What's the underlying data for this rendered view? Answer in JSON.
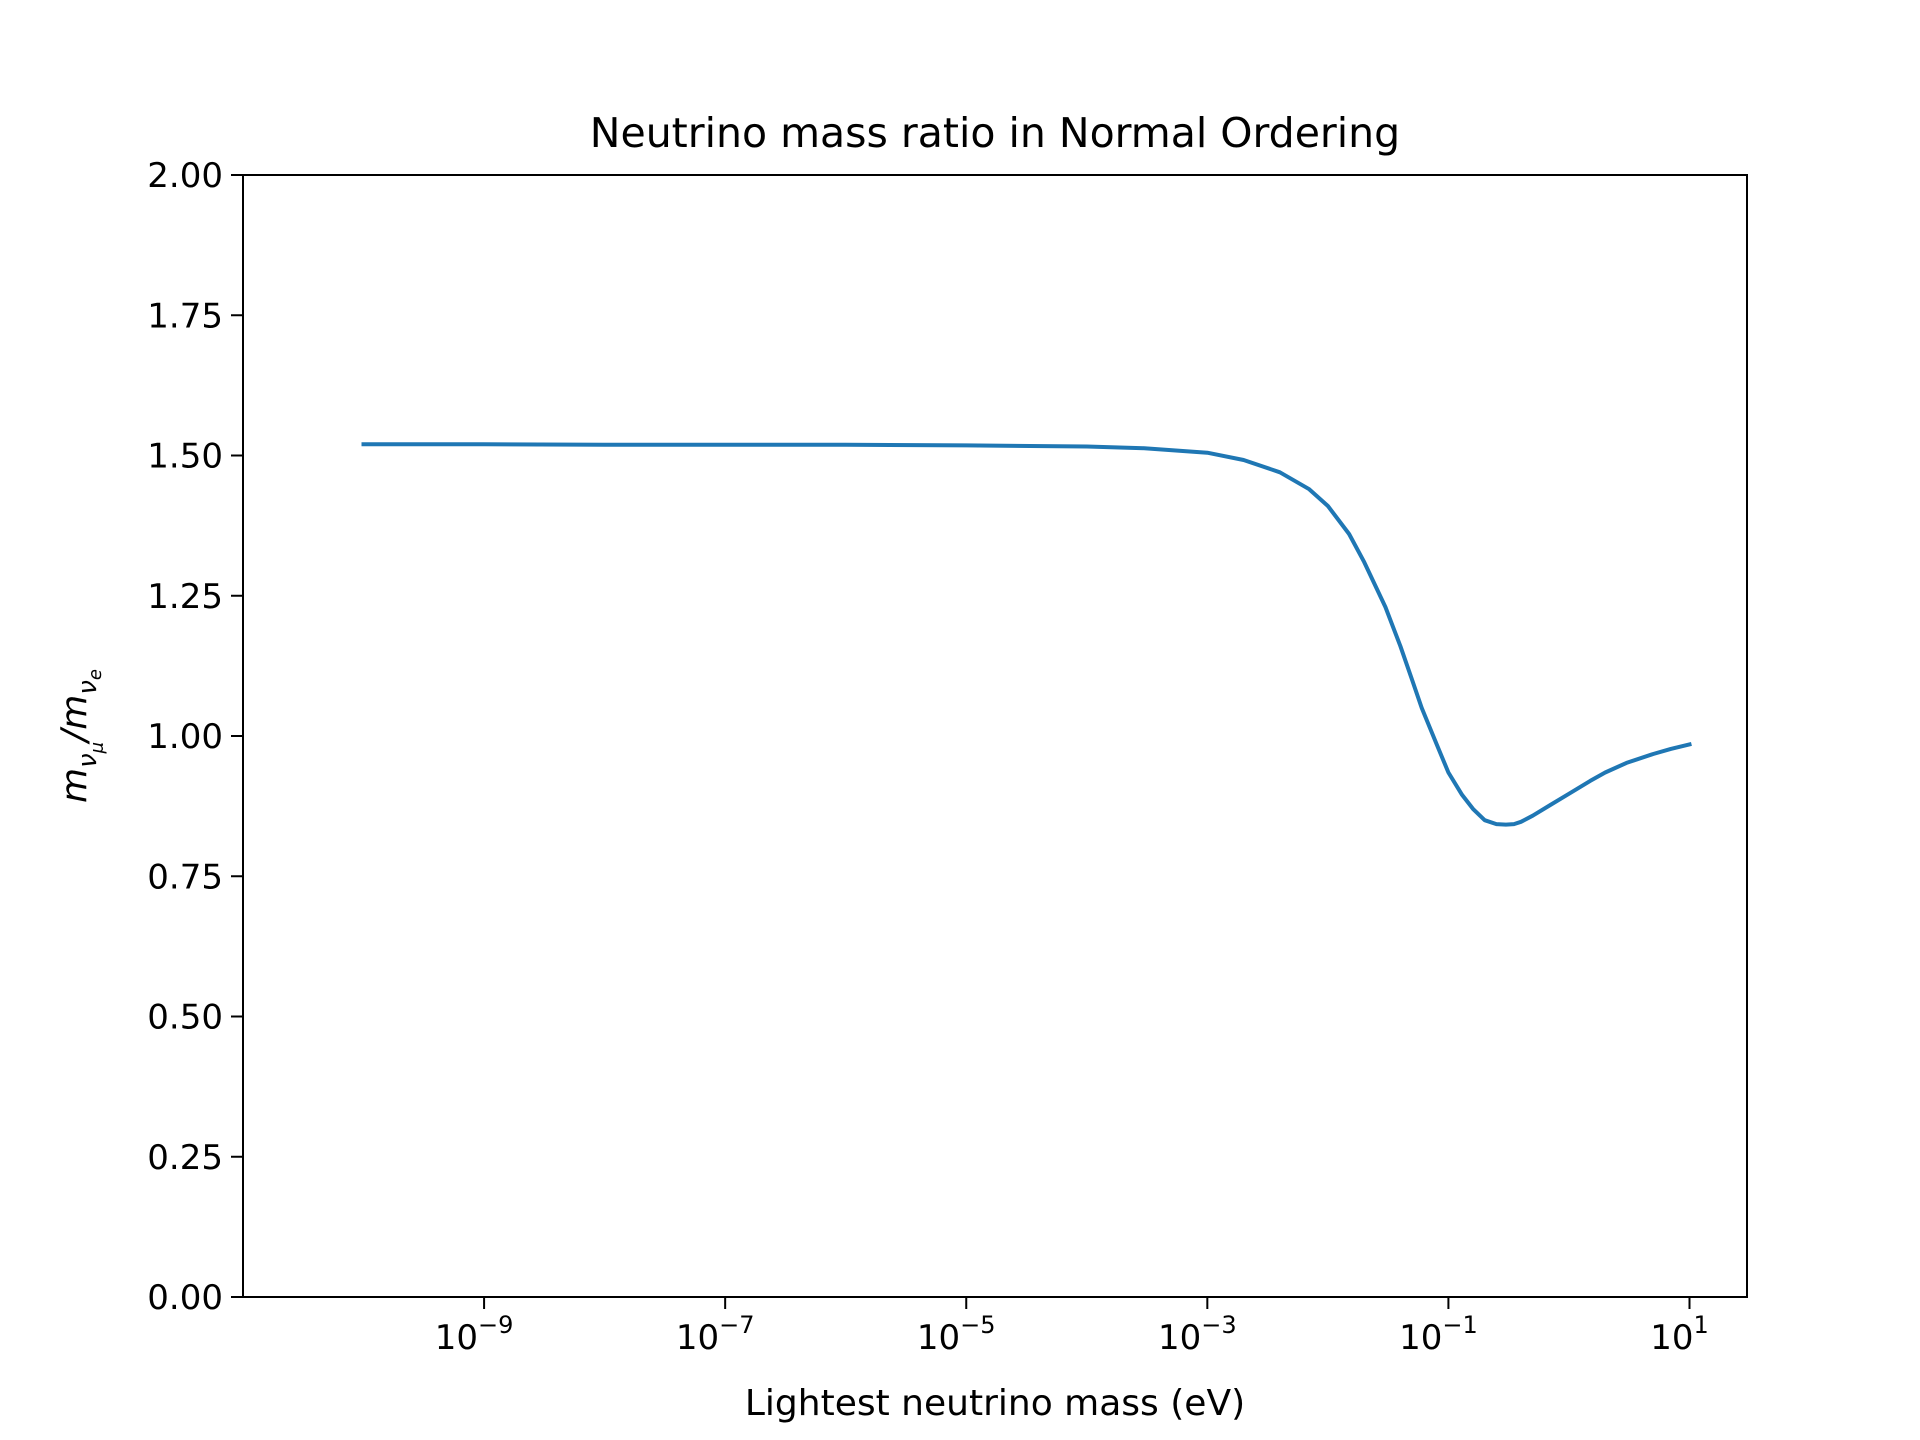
{
  "chart_data": {
    "type": "line",
    "title": "Neutrino mass ratio in Normal Ordering",
    "xlabel": "Lightest neutrino mass (eV)",
    "ylabel": {
      "m1": "m",
      "sub1": "ν",
      "subsub1": "μ",
      "slash": "/",
      "m2": "m",
      "sub2": "ν",
      "subsub2": "e"
    },
    "x_scale": "log",
    "xlim": [
      1e-11,
      30
    ],
    "ylim": [
      0,
      2
    ],
    "grid": false,
    "x_ticks": [
      {
        "value": 1e-09,
        "base": "10",
        "exp": "−9"
      },
      {
        "value": 1e-07,
        "base": "10",
        "exp": "−7"
      },
      {
        "value": 1e-05,
        "base": "10",
        "exp": "−5"
      },
      {
        "value": 0.001,
        "base": "10",
        "exp": "−3"
      },
      {
        "value": 0.1,
        "base": "10",
        "exp": "−1"
      },
      {
        "value": 10,
        "base": "10",
        "exp": "1"
      }
    ],
    "y_ticks": [
      {
        "value": 0,
        "label": "0.00"
      },
      {
        "value": 0.25,
        "label": "0.25"
      },
      {
        "value": 0.5,
        "label": "0.50"
      },
      {
        "value": 0.75,
        "label": "0.75"
      },
      {
        "value": 1.0,
        "label": "1.00"
      },
      {
        "value": 1.25,
        "label": "1.25"
      },
      {
        "value": 1.5,
        "label": "1.50"
      },
      {
        "value": 1.75,
        "label": "1.75"
      },
      {
        "value": 2.0,
        "label": "2.00"
      }
    ],
    "series": [
      {
        "color": "#1f77b4",
        "x": [
          1e-10,
          1e-09,
          1e-08,
          1e-07,
          1e-06,
          1e-05,
          0.0001,
          0.0003,
          0.001,
          0.002,
          0.004,
          0.007,
          0.01,
          0.015,
          0.02,
          0.03,
          0.04,
          0.05,
          0.06,
          0.08,
          0.1,
          0.13,
          0.16,
          0.2,
          0.25,
          0.3,
          0.35,
          0.4,
          0.5,
          0.7,
          1,
          1.5,
          2,
          3,
          5,
          7,
          10
        ],
        "y": [
          1.52,
          1.52,
          1.519,
          1.519,
          1.519,
          1.518,
          1.516,
          1.513,
          1.505,
          1.492,
          1.47,
          1.44,
          1.41,
          1.36,
          1.31,
          1.23,
          1.16,
          1.1,
          1.05,
          0.985,
          0.935,
          0.895,
          0.87,
          0.85,
          0.843,
          0.842,
          0.843,
          0.847,
          0.858,
          0.877,
          0.897,
          0.92,
          0.935,
          0.952,
          0.968,
          0.977,
          0.985
        ]
      }
    ]
  }
}
